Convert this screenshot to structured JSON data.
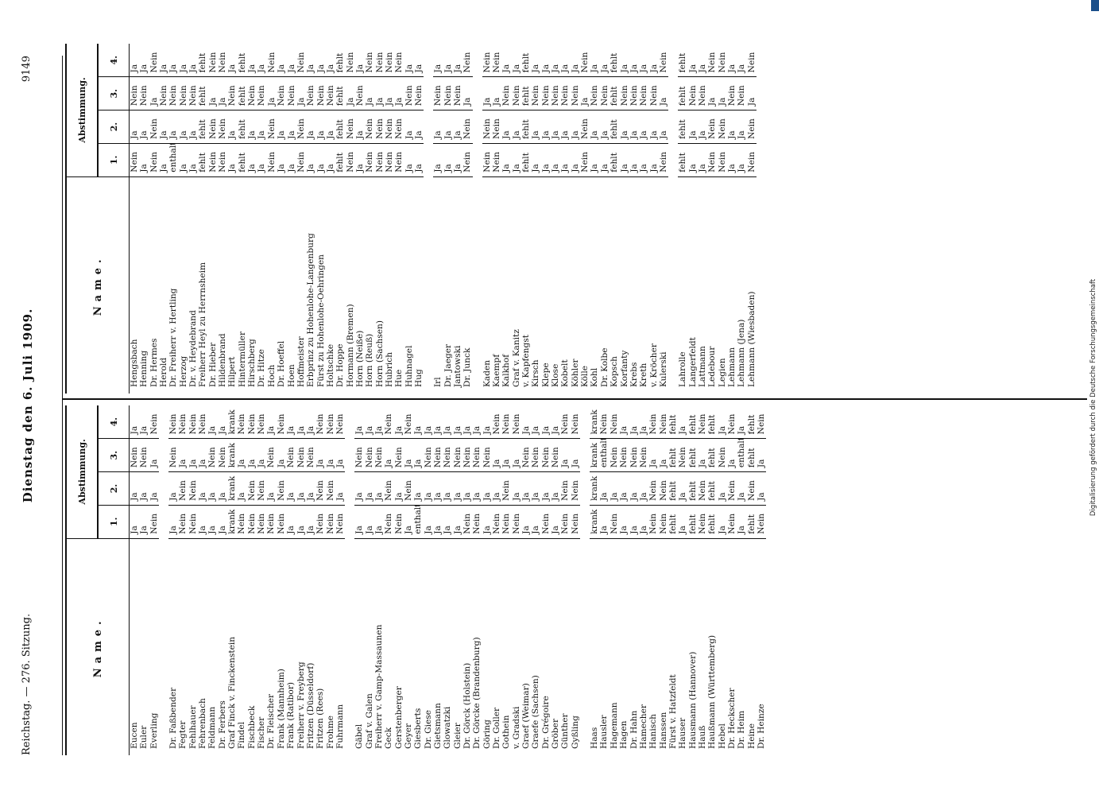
{
  "header": {
    "left": "Reichstag. — 276. Sitzung.",
    "center": "Dienstag den 6. Juli 1909.",
    "right": "9149"
  },
  "columns": {
    "name": "Name.",
    "abst": "Abstimmung.",
    "votes": [
      "1.",
      "2.",
      "3.",
      "4."
    ]
  },
  "footer": "Digitalisierung gefördert durch die Deutsche Forschungsgemeinschaft",
  "left_rows": [
    [
      "Eucen",
      "Ja",
      "Ja",
      "Nein",
      "Ja"
    ],
    [
      "Euler",
      "Ja",
      "Ja",
      "Nein",
      "Ja"
    ],
    [
      "Everling",
      "Nein",
      "Ja",
      "Ja",
      "Nein"
    ],
    null,
    [
      "Dr. Faßbender",
      "Ja",
      "Ja",
      "Nein",
      "Nein"
    ],
    [
      "Fegter",
      "Nein",
      "Nein",
      "Ja",
      "Nein"
    ],
    [
      "Fehlhauer",
      "Nein",
      "Nein",
      "Ja",
      "Nein"
    ],
    [
      "Fehrenbach",
      "Ja",
      "Ja",
      "Ja",
      "Nein"
    ],
    [
      "Feldmann",
      "Ja",
      "Ja",
      "Nein",
      "Ja"
    ],
    [
      "Dr. Ferbers",
      "Ja",
      "Ja",
      "Nein",
      "Ja"
    ],
    [
      "Graf Finck v. Finckenstein",
      "krank",
      "krank",
      "krank",
      "krank"
    ],
    [
      "Findel",
      "Nein",
      "Ja",
      "Ja",
      "Nein"
    ],
    [
      "Fischbeck",
      "Nein",
      "Nein",
      "Ja",
      "Nein"
    ],
    [
      "Fischer",
      "Nein",
      "Nein",
      "Ja",
      "Nein"
    ],
    [
      "Dr. Fleischer",
      "Nein",
      "Ja",
      "Nein",
      "Ja"
    ],
    [
      "Frank (Mannheim)",
      "Nein",
      "Nein",
      "Ja",
      "Nein"
    ],
    [
      "Frank (Ratibor)",
      "Ja",
      "Ja",
      "Nein",
      "Ja"
    ],
    [
      "Freiherr v. Freyberg",
      "Ja",
      "Ja",
      "Nein",
      "Ja"
    ],
    [
      "Fritzen (Düsseldorf)",
      "Ja",
      "Ja",
      "Nein",
      "Ja"
    ],
    [
      "Fritzen (Rees)",
      "Nein",
      "Nein",
      "Ja",
      "Nein"
    ],
    [
      "Frohme",
      "Nein",
      "Nein",
      "Ja",
      "Nein"
    ],
    [
      "Fuhrmann",
      "Nein",
      "Ja",
      "Ja",
      "Nein"
    ],
    null,
    [
      "Gäbel",
      "Ja",
      "Ja",
      "Nein",
      "Ja"
    ],
    [
      "Graf v. Galen",
      "Ja",
      "Ja",
      "Nein",
      "Ja"
    ],
    [
      "Freiherr v. Gamp-Massaunen",
      "Ja",
      "Ja",
      "Nein",
      "Ja"
    ],
    [
      "Geck",
      "Nein",
      "Nein",
      "Ja",
      "Nein"
    ],
    [
      "Gerstenberger",
      "Nein",
      "Ja",
      "Nein",
      "Ja"
    ],
    [
      "Geyer",
      "Ja",
      "Nein",
      "Ja",
      "Nein"
    ],
    [
      "Giesberts",
      "enthalten",
      "Ja",
      "Ja",
      "Ja"
    ],
    [
      "Dr. Giese",
      "Ja",
      "Ja",
      "Nein",
      "Ja"
    ],
    [
      "Gietsmann",
      "Ja",
      "Ja",
      "Nein",
      "Ja"
    ],
    [
      "Glowatzki",
      "Ja",
      "Ja",
      "Nein",
      "Ja"
    ],
    [
      "Gleier",
      "Ja",
      "Ja",
      "Nein",
      "Ja"
    ],
    [
      "Dr. Görck (Holstein)",
      "Nein",
      "Ja",
      "Nein",
      "Ja"
    ],
    [
      "Dr. Görcke (Brandenburg)",
      "Nein",
      "Ja",
      "Nein",
      "Ja"
    ],
    [
      "Göring",
      "Ja",
      "Ja",
      "Nein",
      "Ja"
    ],
    [
      "Dr. Goller",
      "Nein",
      "Ja",
      "Ja",
      "Nein"
    ],
    [
      "Gothein",
      "Nein",
      "Nein",
      "Ja",
      "Nein"
    ],
    [
      "v. Gradski",
      "Nein",
      "Ja",
      "Ja",
      "Nein"
    ],
    [
      "Graef (Weimar)",
      "Ja",
      "Ja",
      "Nein",
      "Ja"
    ],
    [
      "Graefe (Sachsen)",
      "Ja",
      "Ja",
      "Nein",
      "Ja"
    ],
    [
      "Dr. Grégoire",
      "Nein",
      "Ja",
      "Nein",
      "Ja"
    ],
    [
      "Gröber",
      "Ja",
      "Ja",
      "Nein",
      "Ja"
    ],
    [
      "Günther",
      "Nein",
      "Nein",
      "Ja",
      "Nein"
    ],
    [
      "Gyßling",
      "Nein",
      "Nein",
      "Ja",
      "Nein"
    ],
    null,
    [
      "Haas",
      "krank",
      "krank",
      "krank",
      "krank"
    ],
    [
      "Hausler",
      "Ja",
      "Ja",
      "enthalten",
      "Nein"
    ],
    [
      "Hagemann",
      "Nein",
      "Ja",
      "Nein",
      "Nein"
    ],
    [
      "Hagen",
      "Ja",
      "Ja",
      "Nein",
      "Ja"
    ],
    [
      "Dr. Hahn",
      "Ja",
      "Ja",
      "Nein",
      "Ja"
    ],
    [
      "Hamecher",
      "Ja",
      "Ja",
      "Nein",
      "Ja"
    ],
    [
      "Hanisch",
      "Nein",
      "Nein",
      "Ja",
      "Nein"
    ],
    [
      "Hanssen",
      "Nein",
      "Nein",
      "Ja",
      "Nein"
    ],
    [
      "Fürst v. Hatzfeldt",
      "fehlt",
      "fehlt",
      "fehlt",
      "fehlt"
    ],
    [
      "Hauser",
      "Ja",
      "Ja",
      "Nein",
      "Ja"
    ],
    [
      "Hausmann (Hannover)",
      "fehlt",
      "fehlt",
      "fehlt",
      "fehlt"
    ],
    [
      "Hauß",
      "Nein",
      "Nein",
      "Ja",
      "Nein"
    ],
    [
      "Haußmann (Württemberg)",
      "fehlt",
      "fehlt",
      "fehlt",
      "fehlt"
    ],
    [
      "Hebel",
      "Ja",
      "Ja",
      "Nein",
      "Ja"
    ],
    [
      "Dr. Heckscher",
      "Nein",
      "Nein",
      "Ja",
      "Nein"
    ],
    [
      "Dr. Heim",
      "Ja",
      "Ja",
      "enthalten",
      "Ja"
    ],
    [
      "Heine",
      "fehlt",
      "Nein",
      "fehlt",
      "fehlt"
    ],
    [
      "Dr. Heinze",
      "Nein",
      "Ja",
      "Ja",
      "Nein"
    ]
  ],
  "right_rows": [
    [
      "Hengsbach",
      "Nein",
      "Ja",
      "Nein",
      "Ja"
    ],
    [
      "Henning",
      "Ja",
      "Ja",
      "Nein",
      "Ja"
    ],
    [
      "Dr. Hermes",
      "Nein",
      "Nein",
      "Ja",
      "Nein"
    ],
    [
      "Herold",
      "Ja",
      "Ja",
      "Nein",
      "Ja"
    ],
    [
      "Dr. Freiherr v. Hertling",
      "enthalten",
      "Ja",
      "Nein",
      "Ja"
    ],
    [
      "Herzog",
      "Ja",
      "Ja",
      "Nein",
      "Ja"
    ],
    [
      "Dr. v. Heydebrand",
      "Ja",
      "Ja",
      "Nein",
      "Ja"
    ],
    [
      "Freiherr Heyl zu Herrnsheim",
      "fehlt",
      "fehlt",
      "fehlt",
      "fehlt"
    ],
    [
      "Dr. Hieber",
      "Nein",
      "Nein",
      "Ja",
      "Nein"
    ],
    [
      "Hildenbrand",
      "Nein",
      "Nein",
      "Ja",
      "Nein"
    ],
    [
      "Hilpert",
      "Ja",
      "Ja",
      "Nein",
      "Ja"
    ],
    [
      "Hintermüller",
      "fehlt",
      "fehlt",
      "fehlt",
      "fehlt"
    ],
    [
      "Hirschberg",
      "Ja",
      "Ja",
      "Nein",
      "Ja"
    ],
    [
      "Dr. Hitze",
      "Ja",
      "Ja",
      "Nein",
      "Ja"
    ],
    [
      "Hoch",
      "Nein",
      "Nein",
      "Ja",
      "Nein"
    ],
    [
      "Dr. Hoeffel",
      "Ja",
      "Ja",
      "Nein",
      "Ja"
    ],
    [
      "Hoen",
      "Ja",
      "Ja",
      "Nein",
      "Ja"
    ],
    [
      "Hoffmeister",
      "Nein",
      "Nein",
      "Ja",
      "Nein"
    ],
    [
      "Erbprinz zu Hohenlohe-Langenburg",
      "Ja",
      "Ja",
      "Nein",
      "Ja"
    ],
    [
      "Fürst zu Hohenlohe-Oehringen",
      "Ja",
      "Ja",
      "Nein",
      "Ja"
    ],
    [
      "Holtschke",
      "Ja",
      "Ja",
      "Nein",
      "Ja"
    ],
    [
      "Dr. Hoppe",
      "fehlt",
      "fehlt",
      "fehlt",
      "fehlt"
    ],
    [
      "Hormann (Bremen)",
      "Nein",
      "Nein",
      "Ja",
      "Nein"
    ],
    [
      "Horn (Neiße)",
      "Ja",
      "Ja",
      "Nein",
      "Ja"
    ],
    [
      "Horn (Reuß)",
      "Nein",
      "Nein",
      "Ja",
      "Nein"
    ],
    [
      "Horn (Sachsen)",
      "Nein",
      "Nein",
      "Ja",
      "Nein"
    ],
    [
      "Hubrich",
      "Nein",
      "Nein",
      "Ja",
      "Nein"
    ],
    [
      "Hue",
      "Nein",
      "Nein",
      "Ja",
      "Nein"
    ],
    [
      "Huhnagel",
      "Ja",
      "Ja",
      "Nein",
      "Ja"
    ],
    [
      "Hug",
      "Ja",
      "Ja",
      "Nein",
      "Ja"
    ],
    null,
    [
      "Irl",
      "Ja",
      "Ja",
      "Nein",
      "Ja"
    ],
    [
      "Dr. Jaeger",
      "Ja",
      "Ja",
      "Nein",
      "Ja"
    ],
    [
      "Jantowski",
      "Ja",
      "Ja",
      "Nein",
      "Ja"
    ],
    [
      "Dr. Junck",
      "Nein",
      "Nein",
      "Ja",
      "Nein"
    ],
    null,
    [
      "Kaden",
      "Nein",
      "Nein",
      "Ja",
      "Nein"
    ],
    [
      "Kaempf",
      "Nein",
      "Nein",
      "Ja",
      "Nein"
    ],
    [
      "Kalkhof",
      "Ja",
      "Ja",
      "Nein",
      "Ja"
    ],
    [
      "Graf v. Kanitz",
      "Ja",
      "Ja",
      "Nein",
      "Ja"
    ],
    [
      "v. Kapfengst",
      "fehlt",
      "fehlt",
      "fehlt",
      "fehlt"
    ],
    [
      "Kirsch",
      "Ja",
      "Ja",
      "Nein",
      "Ja"
    ],
    [
      "Klepe",
      "Ja",
      "Ja",
      "Nein",
      "Ja"
    ],
    [
      "Klose",
      "Ja",
      "Ja",
      "Nein",
      "Ja"
    ],
    [
      "Kobelt",
      "Ja",
      "Ja",
      "Nein",
      "Ja"
    ],
    [
      "Köhler",
      "Ja",
      "Ja",
      "Nein",
      "Ja"
    ],
    [
      "Kölle",
      "Nein",
      "Nein",
      "Ja",
      "Nein"
    ],
    [
      "Kohl",
      "Ja",
      "Ja",
      "Nein",
      "Ja"
    ],
    [
      "Dr. Kolbe",
      "Ja",
      "Ja",
      "Nein",
      "Ja"
    ],
    [
      "Kopsch",
      "fehlt",
      "fehlt",
      "fehlt",
      "fehlt"
    ],
    [
      "Korfanty",
      "Ja",
      "Ja",
      "Nein",
      "Ja"
    ],
    [
      "Krebs",
      "Ja",
      "Ja",
      "Nein",
      "Ja"
    ],
    [
      "Kreth",
      "Ja",
      "Ja",
      "Nein",
      "Ja"
    ],
    [
      "v. Kröcher",
      "Ja",
      "Ja",
      "Nein",
      "Ja"
    ],
    [
      "Kulerski",
      "Nein",
      "Ja",
      "Ja",
      "Nein"
    ],
    null,
    [
      "Lahrolle",
      "fehlt",
      "fehlt",
      "fehlt",
      "fehlt"
    ],
    [
      "Langerfeldt",
      "Ja",
      "Ja",
      "Nein",
      "Ja"
    ],
    [
      "Lattmann",
      "Ja",
      "Ja",
      "Nein",
      "Ja"
    ],
    [
      "Ledebour",
      "Nein",
      "Nein",
      "Ja",
      "Nein"
    ],
    [
      "Legien",
      "Nein",
      "Nein",
      "Ja",
      "Nein"
    ],
    [
      "Lehmann",
      "Ja",
      "Ja",
      "Nein",
      "Ja"
    ],
    [
      "Lehmann (Jena)",
      "Ja",
      "Ja",
      "Nein",
      "Ja"
    ],
    [
      "Lehmann (Wiesbaden)",
      "Nein",
      "Nein",
      "Ja",
      "Nein"
    ]
  ]
}
